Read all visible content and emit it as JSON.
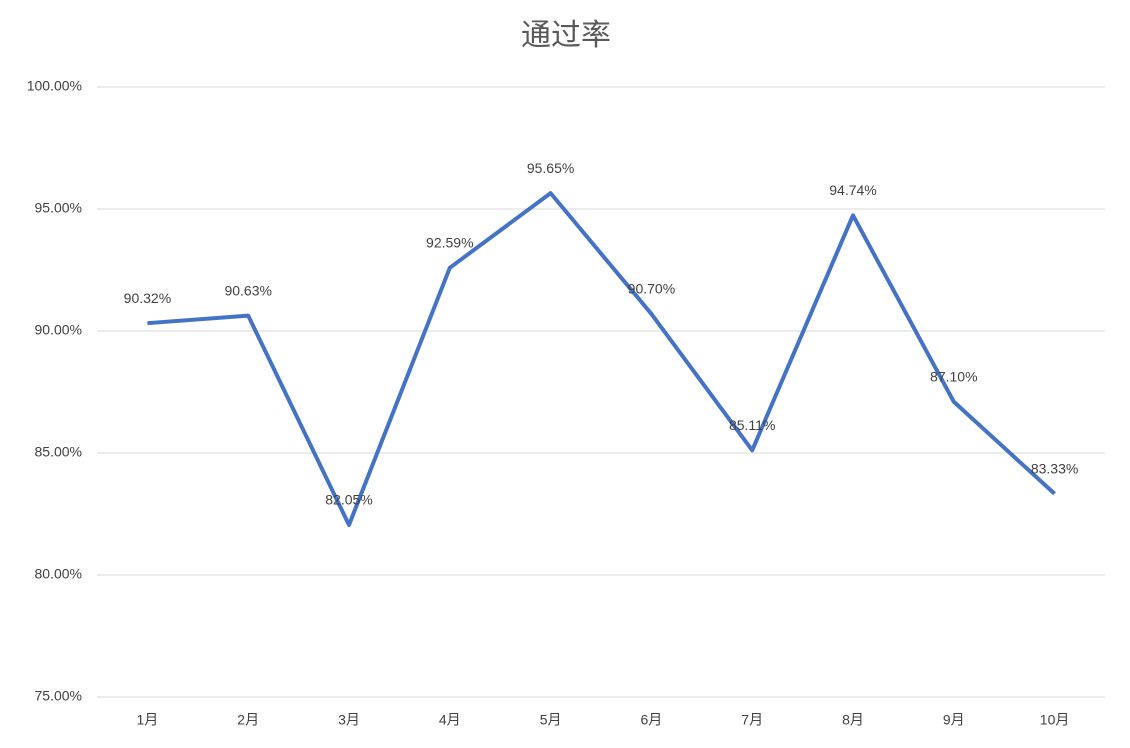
{
  "chart_data": {
    "type": "line",
    "title": "通过率",
    "categories": [
      "1月",
      "2月",
      "3月",
      "4月",
      "5月",
      "6月",
      "7月",
      "8月",
      "9月",
      "10月"
    ],
    "series": [
      {
        "color": "#4472c4",
        "values": [
          90.32,
          90.63,
          82.05,
          92.59,
          95.65,
          90.7,
          85.11,
          94.74,
          87.1,
          83.33
        ],
        "value_labels": [
          "90.32%",
          "90.63%",
          "82.05%",
          "92.59%",
          "95.65%",
          "90.70%",
          "85.11%",
          "94.74%",
          "87.10%",
          "83.33%"
        ]
      }
    ],
    "ylim": [
      75,
      100
    ],
    "yticks": [
      {
        "value": 75,
        "label": "75.00%"
      },
      {
        "value": 80,
        "label": "80.00%"
      },
      {
        "value": 85,
        "label": "85.00%"
      },
      {
        "value": 90,
        "label": "90.00%"
      },
      {
        "value": 95,
        "label": "95.00%"
      },
      {
        "value": 100,
        "label": "100.00%"
      }
    ],
    "grid": true
  }
}
